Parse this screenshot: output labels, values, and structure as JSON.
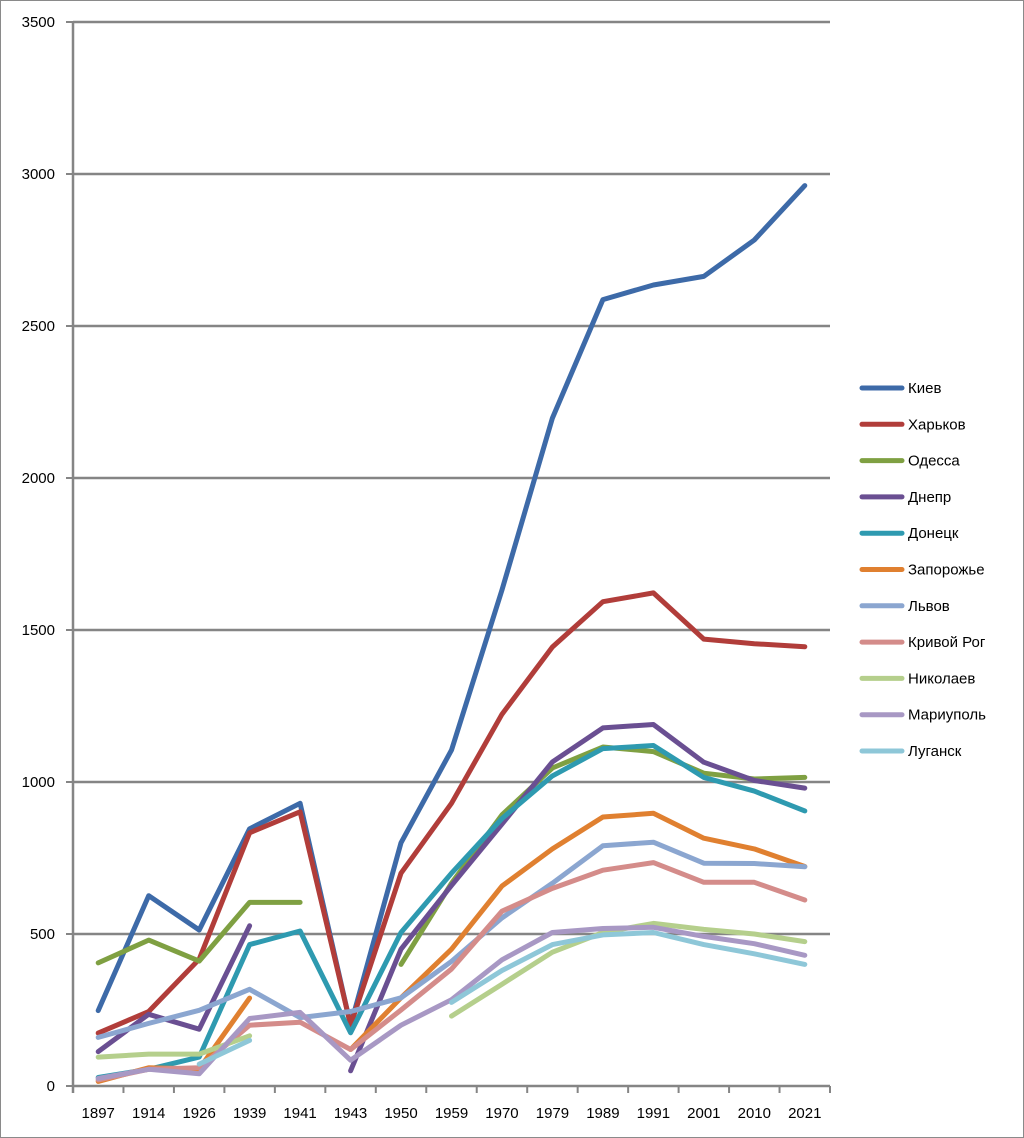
{
  "chart_data": {
    "type": "line",
    "title": "",
    "xlabel": "",
    "ylabel": "",
    "ylim": [
      0,
      3500
    ],
    "yticks": [
      0,
      500,
      1000,
      1500,
      2000,
      2500,
      3000,
      3500
    ],
    "grid": true,
    "legend_position": "right",
    "categories": [
      "1897",
      "1914",
      "1926",
      "1939",
      "1941",
      "1943",
      "1950",
      "1959",
      "1970",
      "1979",
      "1989",
      "1991",
      "2001",
      "2010",
      "2021"
    ],
    "series": [
      {
        "name": "Киев",
        "color": "#3D6AA8",
        "values": [
          248,
          626,
          513,
          846,
          930,
          200,
          800,
          1105,
          1632,
          2197,
          2587,
          2635,
          2663,
          2783,
          2962
        ]
      },
      {
        "name": "Харьков",
        "color": "#B13D3A",
        "values": [
          174,
          245,
          417,
          833,
          902,
          200,
          700,
          930,
          1223,
          1444,
          1593,
          1622,
          1470,
          1455,
          1445
        ]
      },
      {
        "name": "Одесса",
        "color": "#7FA042",
        "values": [
          405,
          480,
          411,
          604,
          604,
          null,
          400,
          667,
          892,
          1046,
          1115,
          1100,
          1029,
          1010,
          1015
        ]
      },
      {
        "name": "Днепр",
        "color": "#6A4F92",
        "values": [
          113,
          236,
          187,
          527,
          null,
          50,
          450,
          660,
          862,
          1066,
          1178,
          1189,
          1065,
          1005,
          980
        ]
      },
      {
        "name": "Донецк",
        "color": "#2E9AB0",
        "values": [
          28,
          55,
          95,
          465,
          510,
          175,
          505,
          700,
          880,
          1020,
          1110,
          1120,
          1015,
          970,
          905
        ]
      },
      {
        "name": "Запорожье",
        "color": "#E08030",
        "values": [
          15,
          60,
          56,
          289,
          null,
          120,
          290,
          450,
          658,
          780,
          885,
          897,
          815,
          780,
          722
        ]
      },
      {
        "name": "Львов",
        "color": "#8BA6D0",
        "values": [
          160,
          206,
          249,
          318,
          225,
          245,
          290,
          410,
          553,
          667,
          790,
          802,
          733,
          732,
          721
        ]
      },
      {
        "name": "Кривой Рог",
        "color": "#D48C8A",
        "values": [
          20,
          55,
          60,
          200,
          210,
          120,
          250,
          385,
          575,
          650,
          710,
          735,
          670,
          670,
          612
        ]
      },
      {
        "name": "Николаев",
        "color": "#B5CF8C",
        "values": [
          95,
          105,
          105,
          165,
          null,
          null,
          null,
          230,
          335,
          440,
          505,
          535,
          515,
          500,
          475
        ]
      },
      {
        "name": "Мариуполь",
        "color": "#A898C4",
        "values": [
          25,
          55,
          40,
          222,
          242,
          85,
          200,
          284,
          415,
          505,
          518,
          522,
          492,
          468,
          430
        ]
      },
      {
        "name": "Луганск",
        "color": "#8EC7D8",
        "values": [
          null,
          null,
          72,
          150,
          null,
          null,
          null,
          275,
          380,
          465,
          497,
          505,
          465,
          435,
          400
        ]
      }
    ]
  }
}
